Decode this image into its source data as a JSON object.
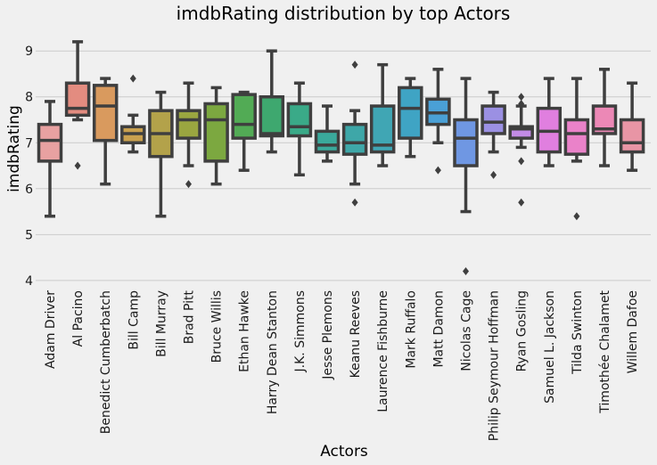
{
  "chart_data": {
    "type": "box",
    "title": "imdbRating distribution by top Actors",
    "xlabel": "Actors",
    "ylabel": "imdbRating",
    "ylim": [
      3.9,
      9.45
    ],
    "yticks": [
      "4",
      "5",
      "6",
      "7",
      "8",
      "9"
    ],
    "grid": "horizontal",
    "categories": [
      "Adam Driver",
      "Al Pacino",
      "Benedict Cumberbatch",
      "Bill Camp",
      "Bill Murray",
      "Brad Pitt",
      "Bruce Willis",
      "Ethan Hawke",
      "Harry Dean Stanton",
      "J.K. Simmons",
      "Jesse Plemons",
      "Keanu Reeves",
      "Laurence Fishburne",
      "Mark Ruffalo",
      "Matt Damon",
      "Nicolas Cage",
      "Philip Seymour Hoffman",
      "Ryan Gosling",
      "Samuel L. Jackson",
      "Tilda Swinton",
      "Timothée Chalamet",
      "Willem Dafoe"
    ],
    "colors": [
      "#e8a1a1",
      "#e38c80",
      "#d99a5e",
      "#c9a04f",
      "#b3a24a",
      "#9aa640",
      "#7ca840",
      "#52ab55",
      "#3ea86f",
      "#3aaa88",
      "#3aa99b",
      "#3ea7a8",
      "#40a6b4",
      "#3fa4c4",
      "#4aa0d6",
      "#6f97e3",
      "#9b90e3",
      "#c28be6",
      "#e07fdf",
      "#ea82c9",
      "#ec88b6",
      "#e895a5"
    ],
    "boxes": [
      {
        "whislo": 5.4,
        "q1": 6.6,
        "med": 7.05,
        "q3": 7.4,
        "whishi": 7.9,
        "fliers": []
      },
      {
        "whislo": 7.5,
        "q1": 7.6,
        "med": 7.75,
        "q3": 8.3,
        "whishi": 9.2,
        "fliers": [
          6.5
        ]
      },
      {
        "whislo": 6.1,
        "q1": 7.05,
        "med": 7.8,
        "q3": 8.25,
        "whishi": 8.4,
        "fliers": []
      },
      {
        "whislo": 6.8,
        "q1": 7.0,
        "med": 7.2,
        "q3": 7.35,
        "whishi": 7.6,
        "fliers": [
          8.4
        ]
      },
      {
        "whislo": 5.4,
        "q1": 6.7,
        "med": 7.2,
        "q3": 7.7,
        "whishi": 8.1,
        "fliers": []
      },
      {
        "whislo": 6.5,
        "q1": 7.1,
        "med": 7.5,
        "q3": 7.7,
        "whishi": 8.3,
        "fliers": [
          6.1
        ]
      },
      {
        "whislo": 6.1,
        "q1": 6.6,
        "med": 7.5,
        "q3": 7.85,
        "whishi": 8.2,
        "fliers": []
      },
      {
        "whislo": 6.4,
        "q1": 7.1,
        "med": 7.4,
        "q3": 8.05,
        "whishi": 8.1,
        "fliers": []
      },
      {
        "whislo": 6.8,
        "q1": 7.15,
        "med": 7.2,
        "q3": 8.0,
        "whishi": 9.0,
        "fliers": []
      },
      {
        "whislo": 6.3,
        "q1": 7.15,
        "med": 7.35,
        "q3": 7.85,
        "whishi": 8.3,
        "fliers": []
      },
      {
        "whislo": 6.6,
        "q1": 6.8,
        "med": 6.95,
        "q3": 7.25,
        "whishi": 7.8,
        "fliers": []
      },
      {
        "whislo": 6.1,
        "q1": 6.75,
        "med": 7.0,
        "q3": 7.4,
        "whishi": 7.7,
        "fliers": [
          8.7,
          5.7
        ]
      },
      {
        "whislo": 6.5,
        "q1": 6.8,
        "med": 6.95,
        "q3": 7.8,
        "whishi": 8.7,
        "fliers": []
      },
      {
        "whislo": 6.7,
        "q1": 7.1,
        "med": 7.75,
        "q3": 8.2,
        "whishi": 8.4,
        "fliers": []
      },
      {
        "whislo": 7.0,
        "q1": 7.4,
        "med": 7.65,
        "q3": 7.95,
        "whishi": 8.6,
        "fliers": [
          6.4
        ]
      },
      {
        "whislo": 5.5,
        "q1": 6.5,
        "med": 7.1,
        "q3": 7.5,
        "whishi": 8.4,
        "fliers": [
          4.2
        ]
      },
      {
        "whislo": 6.8,
        "q1": 7.2,
        "med": 7.45,
        "q3": 7.8,
        "whishi": 8.1,
        "fliers": [
          6.3
        ]
      },
      {
        "whislo": 6.9,
        "q1": 7.1,
        "med": 7.3,
        "q3": 7.35,
        "whishi": 7.8,
        "fliers": [
          8.0,
          7.85,
          6.6,
          5.7
        ]
      },
      {
        "whislo": 6.5,
        "q1": 6.8,
        "med": 7.25,
        "q3": 7.75,
        "whishi": 8.4,
        "fliers": []
      },
      {
        "whislo": 6.6,
        "q1": 6.75,
        "med": 7.2,
        "q3": 7.5,
        "whishi": 8.4,
        "fliers": [
          5.4
        ]
      },
      {
        "whislo": 6.5,
        "q1": 7.2,
        "med": 7.3,
        "q3": 7.8,
        "whishi": 8.6,
        "fliers": []
      },
      {
        "whislo": 6.4,
        "q1": 6.8,
        "med": 7.0,
        "q3": 7.5,
        "whishi": 8.3,
        "fliers": []
      }
    ]
  }
}
